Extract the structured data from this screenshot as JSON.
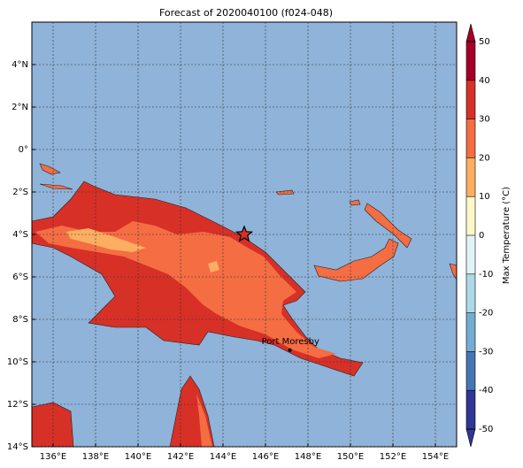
{
  "map": {
    "title": "Forecast of 2020040100 (f024-048)",
    "xlim": [
      135,
      155
    ],
    "ylim": [
      -14,
      6
    ],
    "xticks": [
      {
        "value": 136,
        "label": "136°E"
      },
      {
        "value": 138,
        "label": "138°E"
      },
      {
        "value": 140,
        "label": "140°E"
      },
      {
        "value": 142,
        "label": "142°E"
      },
      {
        "value": 144,
        "label": "144°E"
      },
      {
        "value": 146,
        "label": "146°E"
      },
      {
        "value": 148,
        "label": "148°E"
      },
      {
        "value": 150,
        "label": "150°E"
      },
      {
        "value": 152,
        "label": "152°E"
      },
      {
        "value": 154,
        "label": "154°E"
      }
    ],
    "yticks": [
      {
        "value": 4,
        "label": "4°N"
      },
      {
        "value": 2,
        "label": "2°N"
      },
      {
        "value": 0,
        "label": "0°"
      },
      {
        "value": -2,
        "label": "2°S"
      },
      {
        "value": -4,
        "label": "4°S"
      },
      {
        "value": -6,
        "label": "6°S"
      },
      {
        "value": -8,
        "label": "8°S"
      },
      {
        "value": -10,
        "label": "10°S"
      },
      {
        "value": -12,
        "label": "12°S"
      },
      {
        "value": -14,
        "label": "14°S"
      }
    ],
    "grid": true,
    "places": [
      {
        "name": "Port Moresby",
        "lon": 147.15,
        "lat": -9.45
      }
    ],
    "marker": {
      "lon": 145,
      "lat": -4
    }
  },
  "colorbar": {
    "label": "Max Temperature (°C)",
    "ticks": [
      -50,
      -40,
      -30,
      -20,
      -10,
      0,
      10,
      20,
      30,
      40,
      50
    ],
    "colors": [
      "#313695",
      "#4575b4",
      "#74add1",
      "#abd9e9",
      "#e0f3f8",
      "#fff7c8",
      "#fdae61",
      "#f46d43",
      "#d73027",
      "#a50026"
    ]
  }
}
